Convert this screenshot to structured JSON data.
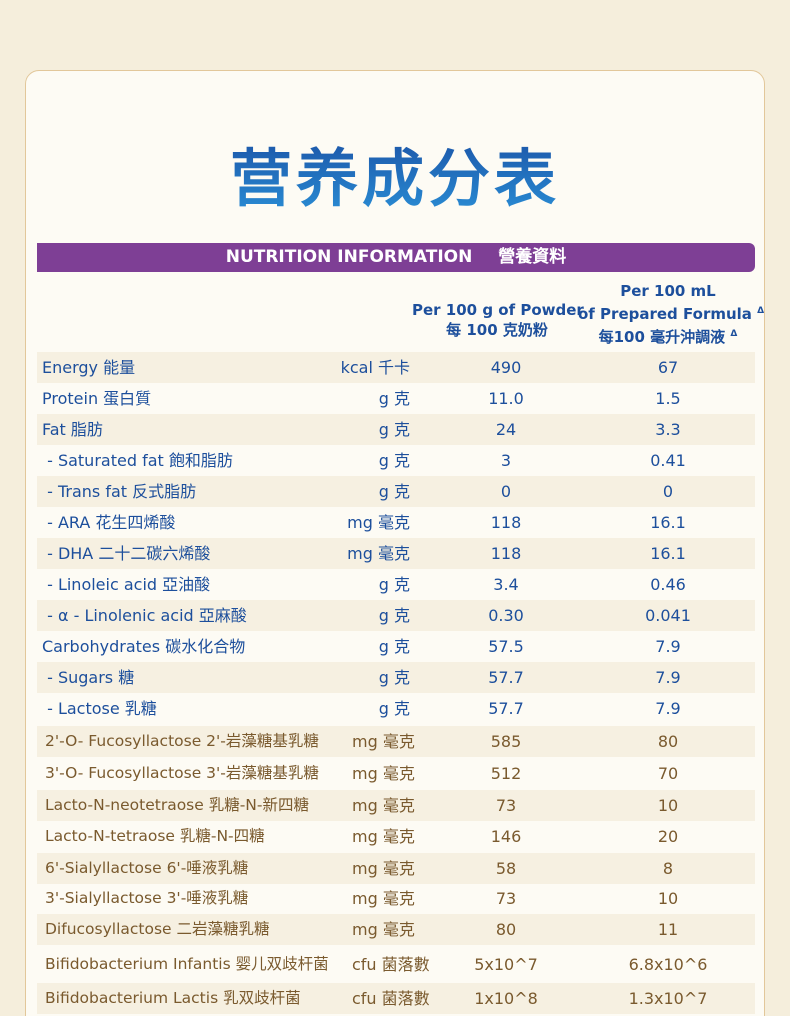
{
  "title": "营养成分表",
  "banner": {
    "english": "NUTRITION INFORMATION",
    "chinese": "營養資料"
  },
  "table": {
    "header": {
      "powder": [
        "Per 100 g of Powder",
        "每 100 克奶粉"
      ],
      "prepared": [
        "Per 100 mL",
        "of Prepared Formula",
        "每100 毫升沖調液"
      ],
      "marker": "Δ"
    },
    "sections": [
      {
        "rows": [
          [
            "Energy 能量",
            "kcal 千卡",
            "490",
            "67"
          ],
          [
            "Protein 蛋白質",
            "g 克",
            "11.0",
            "1.5"
          ],
          [
            "Fat 脂肪",
            "g 克",
            "24",
            "3.3"
          ],
          [
            " - Saturated fat 飽和脂肪",
            "g 克",
            "3",
            "0.41"
          ],
          [
            " - Trans fat 反式脂肪",
            "g 克",
            "0",
            "0"
          ],
          [
            " - ARA 花生四烯酸",
            "mg 毫克",
            "118",
            "16.1"
          ],
          [
            " - DHA 二十二碳六烯酸",
            "mg 毫克",
            "118",
            "16.1"
          ],
          [
            " - Linoleic acid 亞油酸",
            "g 克",
            "3.4",
            "0.46"
          ],
          [
            " - α - Linolenic acid 亞麻酸",
            "g 克",
            "0.30",
            "0.041"
          ],
          [
            "Carbohydrates 碳水化合物",
            "g 克",
            "57.5",
            "7.9"
          ],
          [
            " - Sugars 糖",
            "g 克",
            "57.7",
            "7.9"
          ],
          [
            " - Lactose 乳糖",
            "g 克",
            "57.7",
            "7.9"
          ]
        ]
      },
      {
        "rows": [
          [
            "2'-O- Fucosyllactose 2'-岩藻糖基乳糖",
            "mg 毫克",
            "585",
            "80"
          ],
          [
            "3'-O- Fucosyllactose 3'-岩藻糖基乳糖",
            "mg 毫克",
            "512",
            "70"
          ],
          [
            "Lacto-N-neotetraose 乳糖-N-新四糖",
            "mg 毫克",
            "73",
            "10"
          ],
          [
            "Lacto-N-tetraose 乳糖-N-四糖",
            "mg 毫克",
            "146",
            "20"
          ],
          [
            "6'-Sialyllactose 6'-唾液乳糖",
            "mg 毫克",
            "58",
            "8"
          ],
          [
            "3'-Sialyllactose 3'-唾液乳糖",
            "mg 毫克",
            "73",
            "10"
          ],
          [
            "Difucosyllactose 二岩藻糖乳糖",
            "mg 毫克",
            "80",
            "11"
          ],
          [
            "Bifidobacterium Infantis 婴儿双歧杆菌",
            "cfu 菌落數",
            "5x10^7",
            "6.8x10^6"
          ],
          [
            "Bifidobacterium Lactis 乳双歧杆菌",
            "cfu 菌落數",
            "1x10^8",
            "1.3x10^7"
          ]
        ]
      }
    ]
  }
}
